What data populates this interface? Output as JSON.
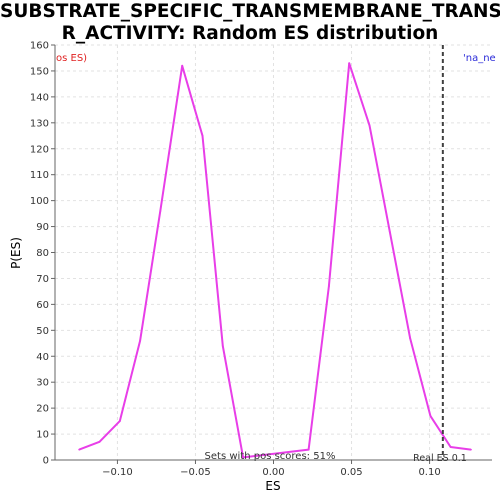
{
  "chart_data": {
    "type": "line",
    "title_lines": [
      "SUBSTRATE_SPECIFIC_TRANSMEMBRANE_TRANSPORTE",
      "R_ACTIVITY: Random ES distribution"
    ],
    "xlabel": "ES",
    "ylabel": "P(ES)",
    "xlim": [
      -0.14,
      0.14
    ],
    "ylim": [
      0,
      160
    ],
    "xticks": [
      -0.1,
      -0.05,
      0.0,
      0.05,
      0.1
    ],
    "xtick_labels": [
      "−0.10",
      "−0.05",
      "0.00",
      "0.05",
      "0.10"
    ],
    "yticks": [
      0,
      10,
      20,
      30,
      40,
      50,
      60,
      70,
      80,
      90,
      100,
      110,
      120,
      130,
      140,
      150,
      160
    ],
    "grid": true,
    "series": [
      {
        "color": "#e83ee8",
        "x": [
          -0.1245,
          -0.1115,
          -0.0985,
          -0.0855,
          -0.0725,
          -0.0585,
          -0.0455,
          -0.0325,
          -0.0195,
          0.0225,
          0.0355,
          0.0485,
          0.0615,
          0.0745,
          0.0875,
          0.1005,
          0.1135,
          0.1265
        ],
        "y": [
          4,
          7,
          15,
          46,
          96,
          152,
          125,
          44,
          1,
          4,
          67,
          153,
          129,
          88,
          47,
          17,
          5,
          4
        ]
      }
    ],
    "real_es": {
      "x": 0.1085,
      "label": "Real ES 0.1"
    },
    "annotations": {
      "left_corner": "os ES)",
      "right_corner": "'na_ne",
      "bottom_center": "Sets with pos scores: 51%"
    },
    "colors": {
      "left_corner": "#e02020",
      "right_corner": "#2a2ad8",
      "line": "#e83ee8",
      "real_es_line": "#404040"
    }
  }
}
